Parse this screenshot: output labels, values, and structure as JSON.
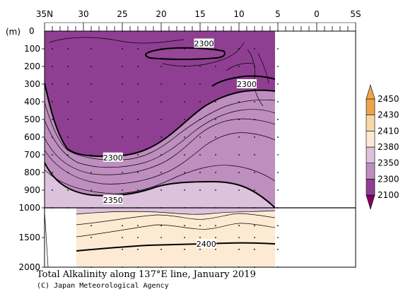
{
  "chart_data": {
    "type": "contour",
    "title": "Total Alkalinity along 137°E line, January 2019",
    "credit": "(C) Japan Meteorological Agency",
    "y_unit_label": "(m)",
    "x_ticks": [
      {
        "lat": 35,
        "label": "35N"
      },
      {
        "lat": 30,
        "label": "30"
      },
      {
        "lat": 25,
        "label": "25"
      },
      {
        "lat": 20,
        "label": "20"
      },
      {
        "lat": 15,
        "label": "15"
      },
      {
        "lat": 10,
        "label": "10"
      },
      {
        "lat": 5,
        "label": "5"
      },
      {
        "lat": 0,
        "label": "0"
      },
      {
        "lat": -5,
        "label": "5S"
      }
    ],
    "xlim": [
      35,
      -5
    ],
    "upper_y_ticks": [
      0,
      100,
      200,
      300,
      400,
      500,
      600,
      700,
      800,
      900,
      1000
    ],
    "upper_ylim": [
      0,
      1000
    ],
    "lower_y_ticks": [
      1000,
      1500,
      2000
    ],
    "lower_ylim": [
      1000,
      2000
    ],
    "data_lat_range": [
      34,
      5
    ],
    "station_lats": [
      34,
      32,
      29,
      25,
      23,
      20,
      17,
      15,
      13,
      10,
      8,
      5
    ],
    "contour_labels": [
      {
        "text": "2300",
        "lat": 14.5,
        "depth": 70
      },
      {
        "text": "2300",
        "lat": 9.0,
        "depth": 300
      },
      {
        "text": "2300",
        "lat": 26.2,
        "depth": 715
      },
      {
        "text": "2350",
        "lat": 26.2,
        "depth": 955
      },
      {
        "text": "2400",
        "lat": 14.2,
        "depth": 1610
      }
    ],
    "colorbar": {
      "levels": [
        2100,
        2300,
        2350,
        2380,
        2410,
        2430,
        2450
      ],
      "colors": [
        "#800060",
        "#8f3f91",
        "#be8ebf",
        "#dcc2dd",
        "#fcebd2",
        "#f8d8a9",
        "#f0a44a"
      ]
    }
  }
}
